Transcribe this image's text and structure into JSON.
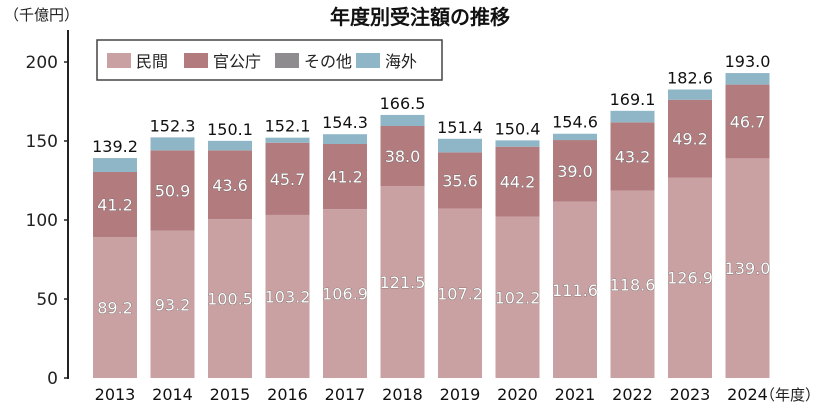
{
  "chart_data": {
    "type": "bar",
    "stacked": true,
    "title": "年度別受注額の推移",
    "ylabel": "（千億円）",
    "xlabel": "（年度）",
    "ylim": [
      0,
      200
    ],
    "yticks": [
      "0",
      "50",
      "100",
      "150",
      "200"
    ],
    "ytick_values": [
      0,
      50,
      100,
      150,
      200
    ],
    "legend_position": "top-left",
    "categories": [
      "2013",
      "2014",
      "2015",
      "2016",
      "2017",
      "2018",
      "2019",
      "2020",
      "2021",
      "2022",
      "2023",
      "2024"
    ],
    "series": [
      {
        "name": "民間",
        "color": "#c9a1a2",
        "values": [
          89.2,
          93.2,
          100.5,
          103.2,
          106.9,
          121.5,
          107.2,
          102.2,
          111.6,
          118.6,
          126.9,
          139.0
        ],
        "labels": [
          "89.2",
          "93.2",
          "100.5",
          "103.2",
          "106.9",
          "121.5",
          "107.2",
          "102.2",
          "111.6",
          "118.6",
          "126.9",
          "139.0"
        ]
      },
      {
        "name": "官公庁",
        "color": "#b27c7f",
        "values": [
          41.2,
          50.9,
          43.6,
          45.7,
          41.2,
          38.0,
          35.6,
          44.2,
          39.0,
          43.2,
          49.2,
          46.7
        ],
        "labels": [
          "41.2",
          "50.9",
          "43.6",
          "45.7",
          "41.2",
          "38.0",
          "35.6",
          "44.2",
          "39.0",
          "43.2",
          "49.2",
          "46.7"
        ]
      },
      {
        "name": "その他",
        "color": "#8e8c8e",
        "values": [
          0,
          0,
          0,
          0,
          0,
          0,
          0,
          0,
          0,
          0,
          0,
          0
        ]
      },
      {
        "name": "海外",
        "color": "#8fb6c6",
        "values": [
          8.8,
          8.2,
          6.0,
          3.2,
          6.2,
          7.0,
          8.6,
          4.0,
          4.0,
          7.3,
          6.5,
          7.3
        ]
      }
    ],
    "totals": [
      "139.2",
      "152.3",
      "150.1",
      "152.1",
      "154.3",
      "166.5",
      "151.4",
      "150.4",
      "154.6",
      "169.1",
      "182.6",
      "193.0"
    ],
    "total_values": [
      139.2,
      152.3,
      150.1,
      152.1,
      154.3,
      166.5,
      151.4,
      150.4,
      154.6,
      169.1,
      182.6,
      193.0
    ]
  }
}
